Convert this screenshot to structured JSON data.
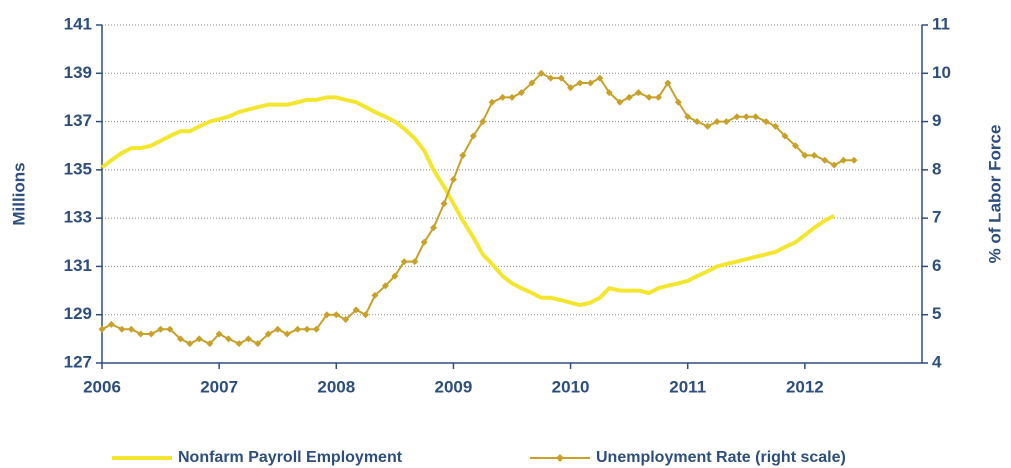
{
  "chart_data": {
    "type": "line",
    "x": [
      2006.0,
      2006.08,
      2006.17,
      2006.25,
      2006.33,
      2006.42,
      2006.5,
      2006.58,
      2006.67,
      2006.75,
      2006.83,
      2006.92,
      2007.0,
      2007.08,
      2007.17,
      2007.25,
      2007.33,
      2007.42,
      2007.5,
      2007.58,
      2007.67,
      2007.75,
      2007.83,
      2007.92,
      2008.0,
      2008.08,
      2008.17,
      2008.25,
      2008.33,
      2008.42,
      2008.5,
      2008.58,
      2008.67,
      2008.75,
      2008.83,
      2008.92,
      2009.0,
      2009.08,
      2009.17,
      2009.25,
      2009.33,
      2009.42,
      2009.5,
      2009.58,
      2009.67,
      2009.75,
      2009.83,
      2009.92,
      2010.0,
      2010.08,
      2010.17,
      2010.25,
      2010.33,
      2010.42,
      2010.5,
      2010.58,
      2010.67,
      2010.75,
      2010.83,
      2010.92,
      2011.0,
      2011.08,
      2011.17,
      2011.25,
      2011.33,
      2011.42,
      2011.5,
      2011.58,
      2011.67,
      2011.75,
      2011.83,
      2011.92,
      2012.0,
      2012.08,
      2012.17,
      2012.25,
      2012.33,
      2012.42
    ],
    "xlim": [
      2006,
      2013
    ],
    "xticks": [
      2006,
      2007,
      2008,
      2009,
      2010,
      2011,
      2012
    ],
    "ylabel": "Millions",
    "ylim": [
      127,
      141
    ],
    "yticks": [
      127,
      129,
      131,
      133,
      135,
      137,
      139,
      141
    ],
    "y2label": "% of Labor Force",
    "y2lim": [
      4,
      11
    ],
    "y2ticks": [
      4,
      5,
      6,
      7,
      8,
      9,
      10,
      11
    ],
    "grid": true,
    "series": [
      {
        "name": "Nonfarm Payroll Employment",
        "color": "#f4e62e",
        "values": [
          135.1,
          135.4,
          135.7,
          135.9,
          135.9,
          136.0,
          136.2,
          136.4,
          136.6,
          136.6,
          136.8,
          137.0,
          137.1,
          137.2,
          137.4,
          137.5,
          137.6,
          137.7,
          137.7,
          137.7,
          137.8,
          137.9,
          137.9,
          138.0,
          138.0,
          137.9,
          137.8,
          137.6,
          137.4,
          137.2,
          137.0,
          136.7,
          136.3,
          135.8,
          135.0,
          134.3,
          133.6,
          132.9,
          132.2,
          131.5,
          131.1,
          130.6,
          130.3,
          130.1,
          129.9,
          129.7,
          129.7,
          129.6,
          129.5,
          129.4,
          129.5,
          129.7,
          130.1,
          130.0,
          130.0,
          130.0,
          129.9,
          130.1,
          130.2,
          130.3,
          130.4,
          130.6,
          130.8,
          131.0,
          131.1,
          131.2,
          131.3,
          131.4,
          131.5,
          131.6,
          131.8,
          132.0,
          132.3,
          132.6,
          132.9,
          133.1,
          null,
          null
        ]
      },
      {
        "name": "Unemployment Rate (right scale)",
        "color": "#c9a12a",
        "axis": "y2",
        "values": [
          4.7,
          4.8,
          4.7,
          4.7,
          4.6,
          4.6,
          4.7,
          4.7,
          4.5,
          4.4,
          4.5,
          4.4,
          4.6,
          4.5,
          4.4,
          4.5,
          4.4,
          4.6,
          4.7,
          4.6,
          4.7,
          4.7,
          4.7,
          5.0,
          5.0,
          4.9,
          5.1,
          5.0,
          5.4,
          5.6,
          5.8,
          6.1,
          6.1,
          6.5,
          6.8,
          7.3,
          7.8,
          8.3,
          8.7,
          9.0,
          9.4,
          9.5,
          9.5,
          9.6,
          9.8,
          10.0,
          9.9,
          9.9,
          9.7,
          9.8,
          9.8,
          9.9,
          9.6,
          9.4,
          9.5,
          9.6,
          9.5,
          9.5,
          9.8,
          9.4,
          9.1,
          9.0,
          8.9,
          9.0,
          9.0,
          9.1,
          9.1,
          9.1,
          9.0,
          8.9,
          8.7,
          8.5,
          8.3,
          8.3,
          8.2,
          8.1,
          8.2,
          8.2
        ]
      }
    ]
  }
}
